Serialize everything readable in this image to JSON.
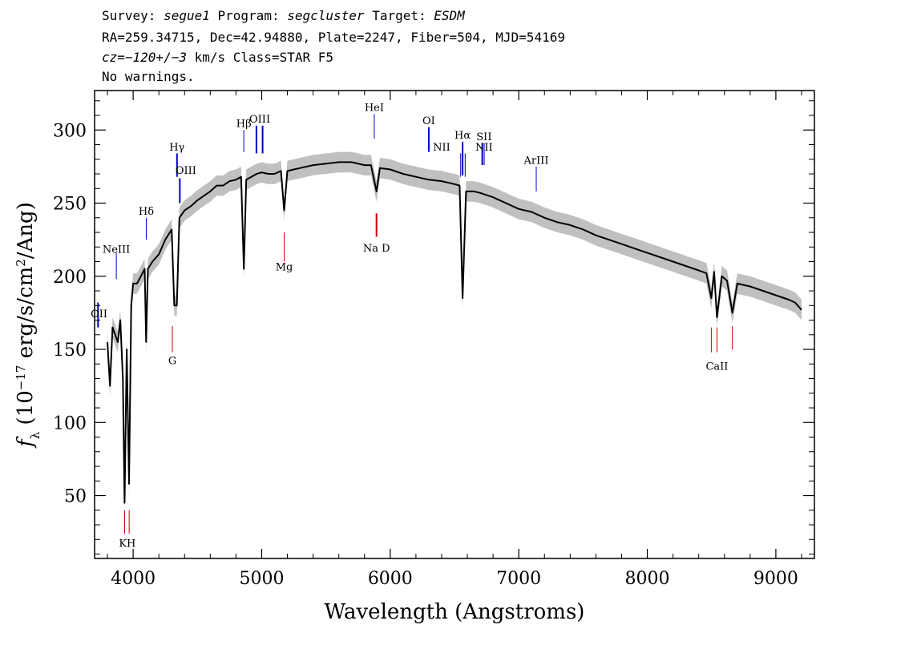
{
  "header": {
    "line1": {
      "survey_label": "Survey:",
      "survey": "segue1",
      "program_label": "Program:",
      "program": "segcluster",
      "target_label": "Target:",
      "target": "ESDM"
    },
    "line2": "RA=259.34715, Dec=42.94880, Plate=2247, Fiber=504, MJD=54169",
    "line3": {
      "cz": "cz=−120+/−3",
      "rest": " km/s Class=STAR F5"
    },
    "line4": "No warnings."
  },
  "colors": {
    "flux": "#000000",
    "error_band": "#c0c0c0",
    "emission_marker": "#0000cc",
    "absorption_marker": "#cc0000"
  },
  "chart_data": {
    "type": "line",
    "title": "",
    "xlabel": "Wavelength (Angstroms)",
    "ylabel_parts": {
      "f": "f",
      "sub": "λ",
      "pre": " (10",
      "exp1": "−17",
      "mid": " erg/s/cm",
      "exp2": "2",
      "post": "/Ang)"
    },
    "xlim": [
      3700,
      9300
    ],
    "ylim": [
      7,
      327
    ],
    "x_ticks": [
      4000,
      5000,
      6000,
      7000,
      8000,
      9000
    ],
    "y_ticks": [
      50,
      100,
      150,
      200,
      250,
      300
    ],
    "series": [
      {
        "x": [
          3800,
          3820,
          3840,
          3860,
          3880,
          3900,
          3920,
          3933,
          3950,
          3968,
          3985,
          4000,
          4030,
          4060,
          4090,
          4101,
          4115,
          4150,
          4200,
          4250,
          4300,
          4320,
          4340,
          4360,
          4400,
          4450,
          4500,
          4550,
          4600,
          4650,
          4700,
          4750,
          4800,
          4840,
          4861,
          4880,
          4920,
          4960,
          5000,
          5050,
          5100,
          5150,
          5175,
          5200,
          5250,
          5300,
          5400,
          5500,
          5600,
          5700,
          5800,
          5850,
          5893,
          5920,
          6000,
          6100,
          6200,
          6300,
          6400,
          6500,
          6540,
          6563,
          6590,
          6650,
          6700,
          6800,
          6900,
          7000,
          7100,
          7200,
          7300,
          7400,
          7500,
          7600,
          7700,
          7800,
          7900,
          8000,
          8100,
          8200,
          8300,
          8400,
          8460,
          8498,
          8520,
          8542,
          8580,
          8620,
          8662,
          8700,
          8800,
          8900,
          9000,
          9100,
          9150,
          9200
        ],
        "y": [
          155,
          125,
          165,
          160,
          155,
          170,
          130,
          45,
          150,
          58,
          180,
          195,
          195,
          200,
          205,
          155,
          205,
          210,
          215,
          225,
          232,
          180,
          180,
          240,
          245,
          248,
          252,
          255,
          258,
          262,
          262,
          265,
          266,
          268,
          205,
          266,
          268,
          270,
          271,
          270,
          270,
          272,
          245,
          272,
          273,
          274,
          276,
          277,
          278,
          278,
          276,
          276,
          258,
          274,
          273,
          270,
          268,
          266,
          265,
          263,
          262,
          185,
          258,
          258,
          257,
          254,
          250,
          246,
          244,
          240,
          237,
          235,
          232,
          228,
          225,
          222,
          219,
          216,
          213,
          210,
          207,
          204,
          202,
          185,
          203,
          172,
          200,
          197,
          175,
          195,
          193,
          190,
          187,
          184,
          182,
          177
        ],
        "error": 7
      }
    ],
    "line_markers": [
      {
        "label": "NeIII",
        "x": 3869,
        "y0": 198,
        "y1": 216,
        "lx": 3869,
        "ly": 216,
        "color": "#0000cc",
        "w": 1
      },
      {
        "label": "OII",
        "x": 3727,
        "y0": 165,
        "y1": 182,
        "lx": 3735,
        "ly": 172,
        "color": "#0000cc",
        "w": 2
      },
      {
        "label": "Hδ",
        "x": 4102,
        "y0": 225,
        "y1": 240,
        "lx": 4102,
        "ly": 242,
        "color": "#0000cc",
        "w": 1
      },
      {
        "label": "Hγ",
        "x": 4341,
        "y0": 268,
        "y1": 284,
        "lx": 4341,
        "ly": 286,
        "color": "#0000cc",
        "w": 2
      },
      {
        "label": "OIII",
        "x": 4363,
        "y0": 250,
        "y1": 267,
        "lx": 4410,
        "ly": 270,
        "color": "#0000cc",
        "w": 2
      },
      {
        "label": "Hβ",
        "x": 4861,
        "y0": 285,
        "y1": 300,
        "lx": 4861,
        "ly": 302,
        "color": "#0000cc",
        "w": 1
      },
      {
        "label": "OIII",
        "x": 4959,
        "y0": 284,
        "y1": 303,
        "lx": 4985,
        "ly": 305,
        "color": "#0000cc",
        "w": 2
      },
      {
        "label": "OIII",
        "x": 5007,
        "y0": 284,
        "y1": 303,
        "lx": null,
        "ly": null,
        "color": "#0000cc",
        "w": 2
      },
      {
        "label": "HeI",
        "x": 5876,
        "y0": 294,
        "y1": 311,
        "lx": 5876,
        "ly": 313,
        "color": "#0000cc",
        "w": 1
      },
      {
        "label": "OI",
        "x": 6300,
        "y0": 285,
        "y1": 302,
        "lx": 6300,
        "ly": 304,
        "color": "#0000cc",
        "w": 2
      },
      {
        "label": "NII",
        "x": 6548,
        "y0": 268,
        "y1": 284,
        "lx": 6400,
        "ly": 286,
        "color": "#0000cc",
        "w": 1
      },
      {
        "label": "Hα",
        "x": 6563,
        "y0": 269,
        "y1": 292,
        "lx": 6563,
        "ly": 294,
        "color": "#0000cc",
        "w": 2
      },
      {
        "label": "NII",
        "x": 6583,
        "y0": 268,
        "y1": 284,
        "lx": null,
        "ly": null,
        "color": "#0000cc",
        "w": 1
      },
      {
        "label": "SII",
        "x": 6716,
        "y0": 276,
        "y1": 291,
        "lx": 6730,
        "ly": 293,
        "color": "#0000cc",
        "w": 2
      },
      {
        "label": "NII",
        "x": 6731,
        "y0": 276,
        "y1": 291,
        "lx": 6730,
        "ly": 286,
        "color": "#0000cc",
        "w": 1
      },
      {
        "label": "ArIII",
        "x": 7136,
        "y0": 258,
        "y1": 275,
        "lx": 7136,
        "ly": 277,
        "color": "#0000cc",
        "w": 1
      },
      {
        "label": "Mg",
        "x": 5175,
        "y0": 210,
        "y1": 230,
        "lx": 5175,
        "ly": 204,
        "color": "#cc0000",
        "w": 1
      },
      {
        "label": "Na D",
        "x": 5893,
        "y0": 227,
        "y1": 243,
        "lx": 5893,
        "ly": 217,
        "color": "#cc0000",
        "w": 2
      },
      {
        "label": "G",
        "x": 4305,
        "y0": 148,
        "y1": 166,
        "lx": 4305,
        "ly": 140,
        "color": "#cc0000",
        "w": 1
      },
      {
        "label": "K",
        "x": 3934,
        "y0": 24,
        "y1": 40,
        "lx": 3920,
        "ly": 15,
        "color": "#cc0000",
        "w": 1
      },
      {
        "label": "H",
        "x": 3969,
        "y0": 24,
        "y1": 40,
        "lx": 3985,
        "ly": 15,
        "color": "#cc0000",
        "w": 1
      },
      {
        "label": "CaII",
        "x": 8498,
        "y0": 148,
        "y1": 165,
        "lx": 8542,
        "ly": 136,
        "color": "#cc0000",
        "w": 1
      },
      {
        "label": "CaII",
        "x": 8542,
        "y0": 148,
        "y1": 165,
        "lx": null,
        "ly": null,
        "color": "#cc0000",
        "w": 1
      },
      {
        "label": "CaII",
        "x": 8662,
        "y0": 150,
        "y1": 166,
        "lx": null,
        "ly": null,
        "color": "#cc0000",
        "w": 1
      }
    ]
  }
}
